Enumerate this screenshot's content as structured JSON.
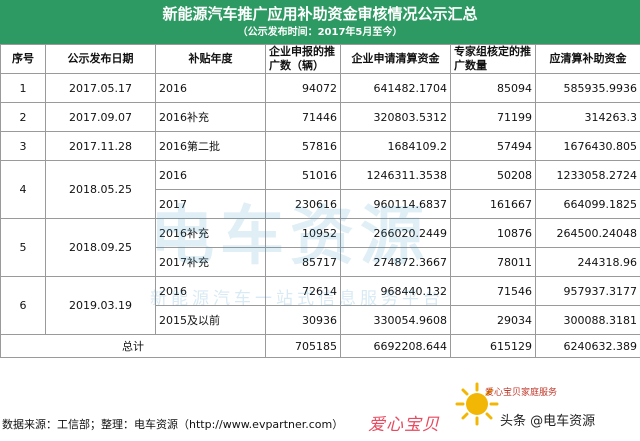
{
  "header": {
    "title": "新能源汽车推广应用补助资金审核情况公示汇总",
    "subtitle": "（公示发布时间：2017年5月至今）"
  },
  "columns": [
    "序号",
    "公示发布日期",
    "补贴年度",
    "企业申报的推广数（辆）",
    "企业申请清算资金",
    "专家组核定的推广数量",
    "应清算补助资金"
  ],
  "groups": [
    {
      "no": "1",
      "date": "2017.05.17",
      "rows": [
        {
          "year": "2016",
          "applied": "94072",
          "funds": "641482.1704",
          "approved": "85094",
          "settled": "585935.9936"
        }
      ]
    },
    {
      "no": "2",
      "date": "2017.09.07",
      "rows": [
        {
          "year": "2016补充",
          "applied": "71446",
          "funds": "320803.5312",
          "approved": "71199",
          "settled": "314263.3"
        }
      ]
    },
    {
      "no": "3",
      "date": "2017.11.28",
      "rows": [
        {
          "year": "2016第二批",
          "applied": "57816",
          "funds": "1684109.2",
          "approved": "57494",
          "settled": "1676430.805"
        }
      ]
    },
    {
      "no": "4",
      "date": "2018.05.25",
      "rows": [
        {
          "year": "2016",
          "applied": "51016",
          "funds": "1246311.3538",
          "approved": "50208",
          "settled": "1233058.2724"
        },
        {
          "year": "2017",
          "applied": "230616",
          "funds": "960114.6837",
          "approved": "161667",
          "settled": "664099.1825"
        }
      ]
    },
    {
      "no": "5",
      "date": "2018.09.25",
      "rows": [
        {
          "year": "2016补充",
          "applied": "10952",
          "funds": "266020.2449",
          "approved": "10876",
          "settled": "264500.24048"
        },
        {
          "year": "2017补充",
          "applied": "85717",
          "funds": "274872.3667",
          "approved": "78011",
          "settled": "244318.96"
        }
      ]
    },
    {
      "no": "6",
      "date": "2019.03.19",
      "rows": [
        {
          "year": "2016",
          "applied": "72614",
          "funds": "968440.132",
          "approved": "71546",
          "settled": "957937.3177"
        },
        {
          "year": "2015及以前",
          "applied": "30936",
          "funds": "330054.9608",
          "approved": "29034",
          "settled": "300088.3181"
        }
      ]
    }
  ],
  "total": {
    "label": "总计",
    "applied": "705185",
    "funds": "6692208.644",
    "approved": "615129",
    "settled": "6240632.389"
  },
  "footer": {
    "text": "数据来源：工信部；整理：电车资源（http://www.evpartner.com）"
  },
  "watermark": {
    "main": "电车资源",
    "sub": "新能源汽车一站式信息服务平台"
  },
  "overlay": {
    "brand_small": "爱心宝贝家庭服务",
    "brand_love": "爱心宝贝",
    "badge": "头条 @电车资源"
  },
  "colors": {
    "header_bg": "#2e9a63",
    "grid_line": "#9a9a9a"
  }
}
